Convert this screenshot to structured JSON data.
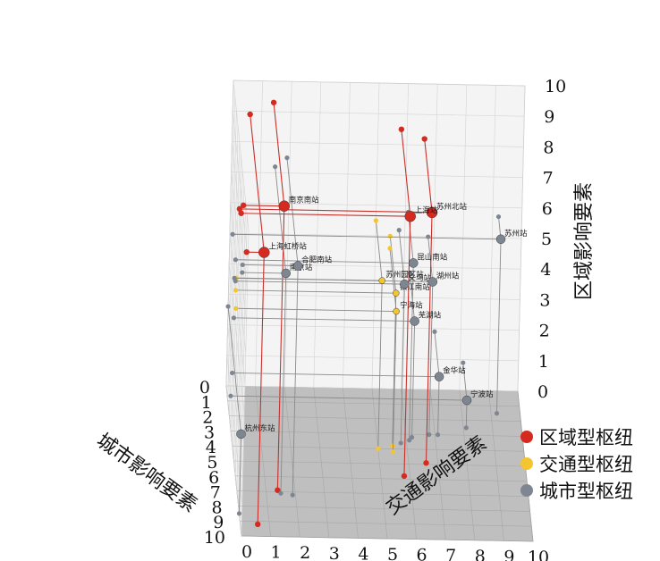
{
  "chart_data": {
    "type": "scatter3d",
    "title": "",
    "axes": {
      "city": {
        "label": "城市影响要素",
        "ticks": [
          "0",
          "1",
          "2",
          "3",
          "4",
          "5",
          "6",
          "7",
          "8",
          "9",
          "10"
        ],
        "range": [
          0,
          10
        ]
      },
      "traffic": {
        "label": "交通影响要素",
        "ticks": [
          "0",
          "1",
          "2",
          "3",
          "4",
          "5",
          "6",
          "7",
          "8",
          "9",
          "10"
        ],
        "range": [
          0,
          10
        ]
      },
      "region": {
        "label": "区域影响要素",
        "ticks": [
          "0",
          "1",
          "2",
          "3",
          "4",
          "5",
          "6",
          "7",
          "8",
          "9",
          "10"
        ],
        "range": [
          0,
          10
        ]
      }
    },
    "grid": true,
    "legend_position": "right",
    "series": [
      {
        "name": "区域型枢纽",
        "color": "#d42a20",
        "points": [
          {
            "label": "上海虹桥站",
            "city": 9.2,
            "traffic": 0.6,
            "region": 8.9
          },
          {
            "label": "南京南站",
            "city": 6.9,
            "traffic": 1.4,
            "region": 9.3
          },
          {
            "label": "上海站",
            "city": 5.8,
            "traffic": 5.8,
            "region": 8.5
          },
          {
            "label": "苏州北站",
            "city": 4.9,
            "traffic": 6.6,
            "region": 8.2
          }
        ]
      },
      {
        "name": "交通型枢纽",
        "color": "#f2c531",
        "points": [
          {
            "label": "苏州园区站",
            "city": 4.0,
            "traffic": 5.0,
            "region": 5.5
          },
          {
            "label": "镇江南站",
            "city": 3.8,
            "traffic": 5.5,
            "region": 5.0
          },
          {
            "label": "宁海站",
            "city": 4.2,
            "traffic": 5.5,
            "region": 4.6
          }
        ]
      },
      {
        "name": "城市型枢纽",
        "color": "#7e8791",
        "points": [
          {
            "label": "合肥南站",
            "city": 7.2,
            "traffic": 1.9,
            "region": 7.5
          },
          {
            "label": "南京站",
            "city": 7.1,
            "traffic": 1.5,
            "region": 7.2
          },
          {
            "label": "苏州站",
            "city": 1.5,
            "traffic": 9.2,
            "region": 5.7
          },
          {
            "label": "昆山南站",
            "city": 3.4,
            "traffic": 6.1,
            "region": 5.8
          },
          {
            "label": "义乌站",
            "city": 3.6,
            "traffic": 5.8,
            "region": 5.2
          },
          {
            "label": "湖州站",
            "city": 3.0,
            "traffic": 6.8,
            "region": 5.0
          },
          {
            "label": "芜湖站",
            "city": 3.2,
            "traffic": 6.2,
            "region": 3.8
          },
          {
            "label": "杭州东站",
            "city": 8.5,
            "traffic": 0.0,
            "region": 2.6
          },
          {
            "label": "金华站",
            "city": 3.0,
            "traffic": 7.1,
            "region": 1.9
          },
          {
            "label": "宁波站",
            "city": 2.5,
            "traffic": 8.1,
            "region": 0.9
          }
        ]
      }
    ]
  }
}
